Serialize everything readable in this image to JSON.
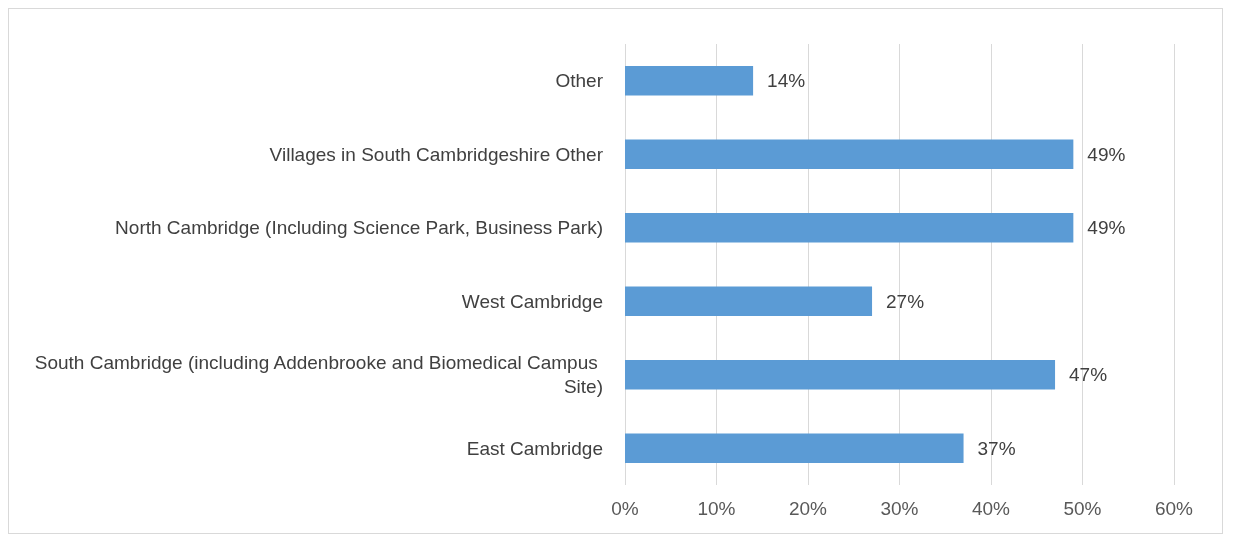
{
  "chart_data": {
    "type": "bar",
    "orientation": "horizontal",
    "categories": [
      "Other",
      "Villages in South Cambridgeshire Other",
      "North Cambridge (Including Science Park, Business Park)",
      "West Cambridge",
      "South Cambridge (including Addenbrooke and Biomedical Campus Site)",
      "East Cambridge"
    ],
    "values": [
      14,
      49,
      49,
      27,
      47,
      37
    ],
    "value_labels": [
      "14%",
      "49%",
      "49%",
      "27%",
      "47%",
      "37%"
    ],
    "color": "#5b9bd5",
    "xlim": [
      0,
      60
    ],
    "xticks": [
      {
        "value": 0,
        "label": "0%"
      },
      {
        "value": 10,
        "label": "10%"
      },
      {
        "value": 20,
        "label": "20%"
      },
      {
        "value": 30,
        "label": "30%"
      },
      {
        "value": 40,
        "label": "40%"
      },
      {
        "value": 50,
        "label": "50%"
      },
      {
        "value": 60,
        "label": "60%"
      }
    ],
    "grid": "x"
  }
}
